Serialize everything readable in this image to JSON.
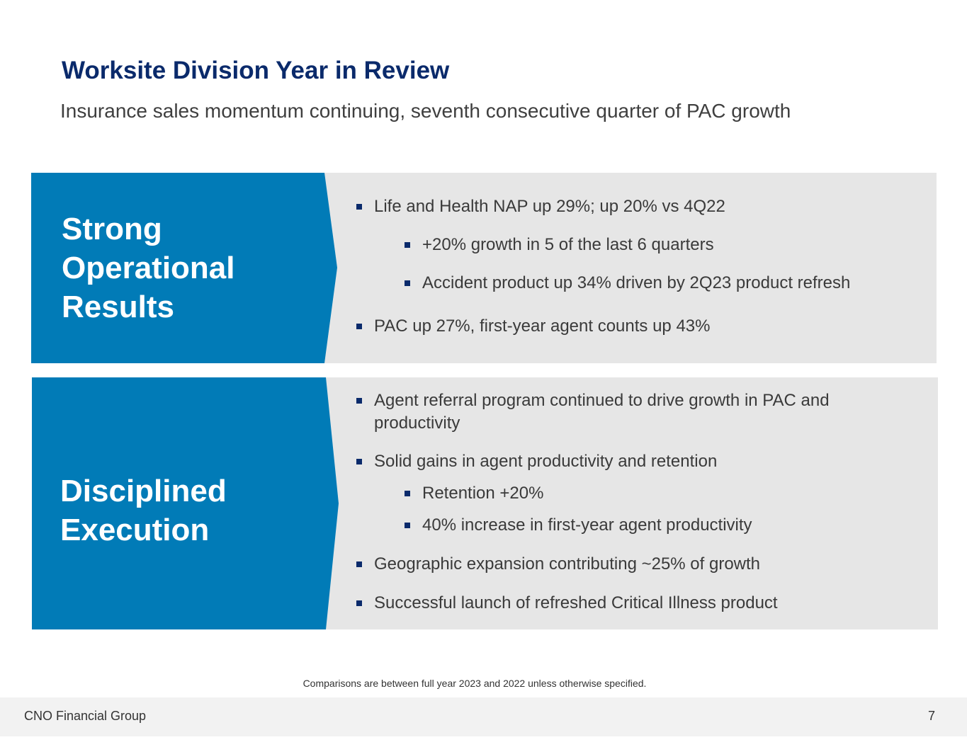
{
  "slide": {
    "title": "Worksite Division Year in Review",
    "subtitle": "Insurance sales momentum continuing, seventh consecutive quarter of PAC growth"
  },
  "colors": {
    "title": "#0a2a6b",
    "accent_blue": "#017bb7",
    "panel_gray": "#e6e6e6",
    "bullet": "#0a2a6b"
  },
  "sections": [
    {
      "heading_lines": [
        "Strong",
        "Operational",
        "Results"
      ],
      "bullets": [
        {
          "level": 1,
          "text": "Life and Health NAP up 29%; up 20% vs 4Q22"
        },
        {
          "level": 2,
          "text": "+20% growth in 5 of the last 6 quarters"
        },
        {
          "level": 2,
          "text": "Accident product up 34% driven by 2Q23 product refresh"
        },
        {
          "level": 1,
          "text": "PAC up 27%, first-year agent counts up 43%"
        }
      ]
    },
    {
      "heading_lines": [
        "Disciplined",
        "Execution"
      ],
      "bullets": [
        {
          "level": 1,
          "text_lines": [
            "Agent referral program continued to drive growth in PAC and",
            "productivity"
          ]
        },
        {
          "level": 1,
          "text": "Solid gains in agent productivity and retention"
        },
        {
          "level": 2,
          "text": "Retention +20%"
        },
        {
          "level": 2,
          "text": "40% increase in first-year agent productivity"
        },
        {
          "level": 1,
          "text": "Geographic expansion contributing ~25% of growth"
        },
        {
          "level": 1,
          "text": "Successful launch of refreshed Critical Illness product"
        }
      ]
    }
  ],
  "footnote": "Comparisons are between full year 2023 and 2022 unless otherwise specified.",
  "footer": {
    "company": "CNO Financial Group",
    "page_number": "7"
  }
}
